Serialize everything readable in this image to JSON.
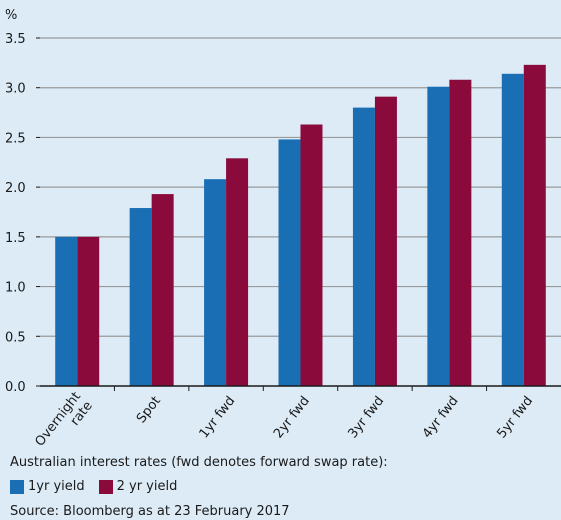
{
  "chart_data": {
    "type": "bar",
    "ylabel": "%",
    "ylim": [
      0,
      3.5
    ],
    "yticks": [
      "0.0",
      "0.5",
      "1.0",
      "1.5",
      "2.0",
      "2.5",
      "3.0",
      "3.5"
    ],
    "categories": [
      "Overnight rate",
      "Spot",
      "1yr fwd",
      "2yr fwd",
      "3yr fwd",
      "4yr fwd",
      "5yr fwd"
    ],
    "category_lines": [
      [
        "Overnight",
        "rate"
      ],
      [
        "Spot"
      ],
      [
        "1yr fwd"
      ],
      [
        "2yr fwd"
      ],
      [
        "3yr fwd"
      ],
      [
        "4yr fwd"
      ],
      [
        "5yr fwd"
      ]
    ],
    "series": [
      {
        "name": "1yr yield",
        "color": "#1a6fb4",
        "values": [
          1.5,
          1.79,
          2.08,
          2.48,
          2.8,
          3.01,
          3.14
        ]
      },
      {
        "name": "2 yr yield",
        "color": "#8a0a3c",
        "values": [
          1.5,
          1.93,
          2.29,
          2.63,
          2.91,
          3.08,
          3.23
        ]
      }
    ],
    "grid": true
  },
  "caption": "Australian interest rates (fwd denotes forward swap rate):",
  "legend": {
    "item1": "1yr yield",
    "item2": "2 yr yield"
  },
  "source": "Source: Bloomberg as at 23 February 2017"
}
